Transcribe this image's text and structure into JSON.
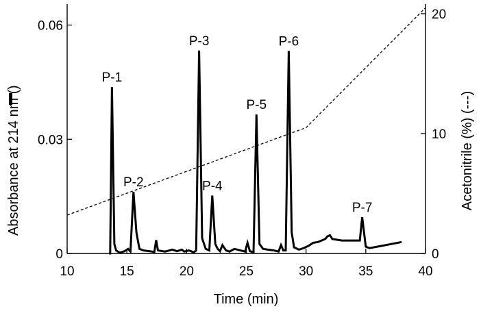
{
  "chart_data": {
    "type": "line",
    "xlabel": "Time (min)",
    "ylabel": "Absorbance at 214 nm (",
    "ylabel_solid_glyph": "solid-line",
    "ylabel_close": ")",
    "y2label": "Acetonitrile (%) (---)",
    "xlim": [
      10,
      40
    ],
    "ylim": [
      0,
      0.0655
    ],
    "y2lim": [
      0,
      20.8
    ],
    "xticks": [
      10,
      15,
      20,
      25,
      30,
      35,
      40
    ],
    "yticks": [
      0,
      0.03,
      0.06
    ],
    "ytick_labels": [
      "0",
      "0.03",
      "0.06"
    ],
    "y2ticks": [
      0,
      10,
      20
    ],
    "y2tick_labels": [
      "0",
      "10",
      "20"
    ],
    "series": [
      {
        "name": "Absorbance at 214 nm",
        "axis": "left",
        "style": "solid",
        "x": [
          13.5,
          13.6,
          13.75,
          13.95,
          14.1,
          14.4,
          14.8,
          15.1,
          15.3,
          15.55,
          15.8,
          16.05,
          16.4,
          16.9,
          17.3,
          17.45,
          17.6,
          18.2,
          18.8,
          19.2,
          19.6,
          19.8,
          20.2,
          20.6,
          20.8,
          21.05,
          21.3,
          21.6,
          21.9,
          22.15,
          22.4,
          22.6,
          22.8,
          23.0,
          23.3,
          23.6,
          24.0,
          24.5,
          24.9,
          25.1,
          25.3,
          25.6,
          25.85,
          26.1,
          26.4,
          26.8,
          27.3,
          27.7,
          27.9,
          28.1,
          28.3,
          28.55,
          28.8,
          29.0,
          29.4,
          29.8,
          30.2,
          30.6,
          31.0,
          31.3,
          31.6,
          31.8,
          32.0,
          32.2,
          32.6,
          33.0,
          33.5,
          34.1,
          34.5,
          34.7,
          35.0,
          35.3,
          36.0,
          37.0,
          38.0
        ],
        "y": [
          0.0,
          0.0,
          0.0437,
          0.0025,
          0.0008,
          0.0002,
          0.0006,
          0.0012,
          0.0005,
          0.0162,
          0.0055,
          0.0012,
          0.0008,
          0.0006,
          0.0004,
          0.0035,
          0.0008,
          0.0005,
          0.001,
          0.0006,
          0.001,
          0.0005,
          0.0008,
          0.0003,
          0.0008,
          0.0533,
          0.004,
          0.0012,
          0.0008,
          0.0152,
          0.0025,
          0.0012,
          0.0006,
          0.0022,
          0.0008,
          0.0005,
          0.0012,
          0.0008,
          0.0005,
          0.0028,
          0.0006,
          0.0003,
          0.0365,
          0.0025,
          0.0012,
          0.001,
          0.0008,
          0.0005,
          0.0022,
          0.0008,
          0.0008,
          0.0532,
          0.0055,
          0.0016,
          0.001,
          0.0014,
          0.002,
          0.0028,
          0.003,
          0.0034,
          0.0038,
          0.0045,
          0.0048,
          0.0038,
          0.0036,
          0.0034,
          0.0034,
          0.0034,
          0.0034,
          0.0095,
          0.0018,
          0.0014,
          0.0018,
          0.0024,
          0.003
        ]
      },
      {
        "name": "Acetonitrile (%)",
        "axis": "right",
        "style": "dashed",
        "x": [
          10,
          30,
          40
        ],
        "y": [
          3.2,
          10.5,
          20.5
        ]
      }
    ],
    "annotations": [
      {
        "text": "P-1",
        "x": 13.75,
        "y": 0.0437
      },
      {
        "text": "P-2",
        "x": 15.55,
        "y": 0.0162
      },
      {
        "text": "P-3",
        "x": 21.05,
        "y": 0.0533
      },
      {
        "text": "P-4",
        "x": 22.15,
        "y": 0.0152
      },
      {
        "text": "P-5",
        "x": 25.85,
        "y": 0.0365
      },
      {
        "text": "P-6",
        "x": 28.55,
        "y": 0.0532
      },
      {
        "text": "P-7",
        "x": 34.7,
        "y": 0.0095
      }
    ]
  }
}
